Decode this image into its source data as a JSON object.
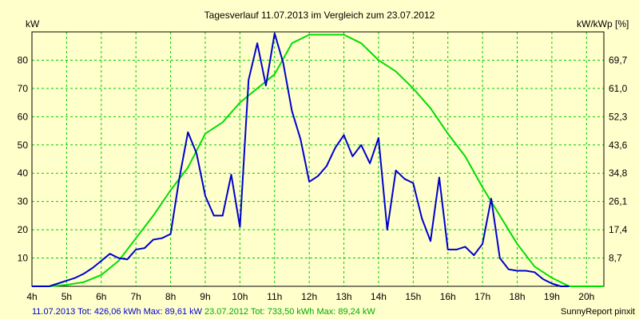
{
  "chart_data": {
    "type": "line",
    "title": "Tagesverlauf 11.07.2013 im Vergleich zum 23.07.2012",
    "ylabel_left": "kW",
    "ylabel_right": "kW/kWp [%]",
    "xlim": [
      4,
      20.5
    ],
    "ylim": [
      0,
      90
    ],
    "x_ticks": [
      4,
      5,
      6,
      7,
      8,
      9,
      10,
      11,
      12,
      13,
      14,
      15,
      16,
      17,
      18,
      19,
      20
    ],
    "x_tick_labels": [
      "4h",
      "5h",
      "6h",
      "7h",
      "8h",
      "9h",
      "10h",
      "11h",
      "12h",
      "13h",
      "14h",
      "15h",
      "16h",
      "17h",
      "18h",
      "19h",
      "20h"
    ],
    "y_ticks": [
      10,
      20,
      30,
      40,
      50,
      60,
      70,
      80
    ],
    "y_tick_labels": [
      "10",
      "20",
      "30",
      "40",
      "50",
      "60",
      "70",
      "80"
    ],
    "y_right_ticks": [
      10,
      20,
      30,
      40,
      50,
      60,
      70,
      80
    ],
    "y_right_tick_labels": [
      "8,7",
      "17,4",
      "26,1",
      "34,8",
      "43,6",
      "52,3",
      "61,0",
      "69,7"
    ],
    "grid": true,
    "grid_color": "#00cc00",
    "series": [
      {
        "name": "11.07.2013",
        "color": "#0000cc",
        "x": [
          4.0,
          4.5,
          4.75,
          5.0,
          5.25,
          5.5,
          5.75,
          6.0,
          6.25,
          6.5,
          6.75,
          7.0,
          7.25,
          7.5,
          7.75,
          8.0,
          8.25,
          8.5,
          8.75,
          9.0,
          9.25,
          9.5,
          9.75,
          10.0,
          10.25,
          10.5,
          10.75,
          11.0,
          11.25,
          11.5,
          11.75,
          12.0,
          12.25,
          12.5,
          12.75,
          13.0,
          13.25,
          13.5,
          13.75,
          14.0,
          14.25,
          14.5,
          14.75,
          15.0,
          15.25,
          15.5,
          15.75,
          16.0,
          16.25,
          16.5,
          16.75,
          17.0,
          17.25,
          17.5,
          17.75,
          18.0,
          18.25,
          18.5,
          18.75,
          19.0,
          19.25,
          19.5
        ],
        "values": [
          0,
          0,
          1,
          2,
          3,
          4.5,
          6.5,
          9,
          11.5,
          10,
          9.5,
          13,
          13.5,
          16.5,
          17,
          18.5,
          38,
          54.5,
          47,
          32,
          25,
          25,
          39.5,
          21,
          73,
          86,
          71,
          89.5,
          79,
          62,
          52,
          37,
          39,
          42.5,
          49,
          53.5,
          46,
          50,
          43.5,
          52.5,
          20,
          41,
          38,
          36.5,
          24,
          16,
          38.5,
          13,
          13,
          14,
          11,
          15,
          31,
          10,
          6,
          5.5,
          5.5,
          5,
          2.5,
          1,
          0,
          0
        ]
      },
      {
        "name": "23.07.2012",
        "color": "#00dd00",
        "x": [
          4.0,
          4.5,
          5.0,
          5.5,
          6.0,
          6.5,
          7.0,
          7.5,
          8.0,
          8.5,
          9.0,
          9.5,
          10.0,
          10.5,
          11.0,
          11.5,
          12.0,
          12.5,
          13.0,
          13.5,
          14.0,
          14.5,
          15.0,
          15.5,
          16.0,
          16.5,
          17.0,
          17.5,
          18.0,
          18.5,
          19.0,
          19.5,
          20.0,
          20.5
        ],
        "values": [
          0,
          0,
          0.5,
          1.5,
          4,
          9,
          17,
          25,
          34,
          42,
          54,
          58,
          65,
          70,
          75,
          86,
          89,
          89,
          89,
          86,
          80,
          76,
          70,
          63,
          54,
          46,
          35,
          25,
          15,
          7,
          3,
          0,
          0,
          0
        ]
      }
    ]
  },
  "footer": {
    "series1_summary": "11.07.2013 Tot: 426,06 kWh Max: 89,61 kW",
    "series2_summary": "23.07.2012 Tot: 733,50 kWh Max: 89,24 kW",
    "brand": "SunnyReport pinxit"
  }
}
